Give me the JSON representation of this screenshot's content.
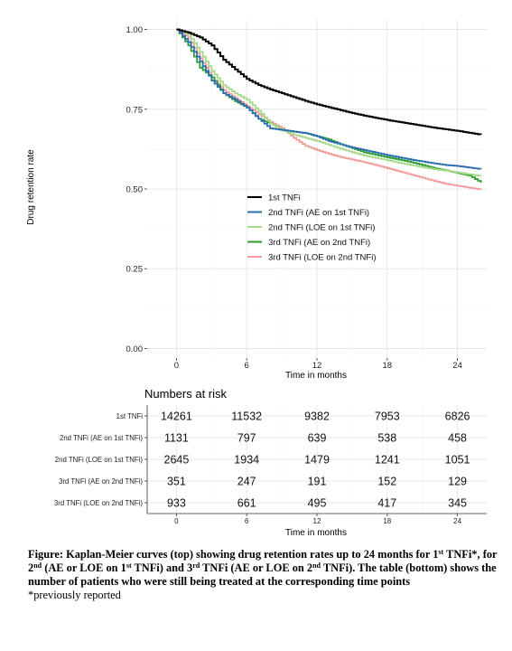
{
  "chart_data": [
    {
      "type": "line",
      "subtype": "step",
      "title": "",
      "ylabel": "Drug retention rate",
      "xlabel": "Time in months",
      "xlim": [
        -2.5,
        26.5
      ],
      "ylim": [
        -0.03,
        1.03
      ],
      "xticks": [
        0,
        6,
        12,
        18,
        24
      ],
      "yticks": [
        0.0,
        0.25,
        0.5,
        0.75,
        1.0
      ],
      "ytick_labels": [
        "0.00",
        "0.25",
        "0.50",
        "0.75",
        "1.00"
      ],
      "grid": true,
      "legend_position": "center",
      "series": [
        {
          "name": "1st TNFi",
          "color": "#000000",
          "x": [
            0,
            1,
            2,
            3,
            4,
            5,
            6,
            7,
            8,
            9,
            10,
            11,
            12,
            13,
            14,
            15,
            16,
            17,
            18,
            19,
            20,
            21,
            22,
            23,
            24,
            25,
            26
          ],
          "y": [
            1.0,
            0.99,
            0.975,
            0.95,
            0.905,
            0.875,
            0.845,
            0.826,
            0.812,
            0.8,
            0.788,
            0.776,
            0.765,
            0.756,
            0.747,
            0.738,
            0.73,
            0.723,
            0.716,
            0.71,
            0.704,
            0.698,
            0.692,
            0.687,
            0.682,
            0.676,
            0.67
          ]
        },
        {
          "name": "2nd TNFi (AE on 1st TNFi)",
          "color": "#2a6fb0",
          "x": [
            0,
            1,
            2,
            3,
            4,
            5,
            6,
            7,
            8,
            9,
            10,
            11,
            12,
            13,
            14,
            15,
            16,
            17,
            18,
            19,
            20,
            21,
            22,
            23,
            24,
            25,
            26
          ],
          "y": [
            1.0,
            0.96,
            0.9,
            0.84,
            0.8,
            0.78,
            0.755,
            0.72,
            0.69,
            0.685,
            0.68,
            0.675,
            0.665,
            0.65,
            0.64,
            0.63,
            0.622,
            0.614,
            0.606,
            0.599,
            0.592,
            0.586,
            0.58,
            0.575,
            0.572,
            0.567,
            0.562
          ]
        },
        {
          "name": "2nd TNFi (LOE on 1st TNFi)",
          "color": "#a6d98a",
          "x": [
            0,
            1,
            2,
            3,
            4,
            5,
            6,
            7,
            8,
            9,
            10,
            11,
            12,
            13,
            14,
            15,
            16,
            17,
            18,
            19,
            20,
            21,
            22,
            23,
            24,
            25,
            26
          ],
          "y": [
            1.0,
            0.985,
            0.93,
            0.87,
            0.825,
            0.8,
            0.78,
            0.745,
            0.705,
            0.685,
            0.67,
            0.66,
            0.65,
            0.638,
            0.626,
            0.615,
            0.605,
            0.597,
            0.59,
            0.582,
            0.575,
            0.568,
            0.562,
            0.557,
            0.552,
            0.546,
            0.54
          ]
        },
        {
          "name": "3rd TNFi (AE on 2nd TNFi)",
          "color": "#2e9e2e",
          "x": [
            0,
            1,
            2,
            3,
            4,
            5,
            6,
            7,
            8,
            9,
            10,
            11,
            12,
            13,
            14,
            15,
            16,
            17,
            18,
            19,
            20,
            21,
            22,
            23,
            24,
            25,
            26
          ],
          "y": [
            1.0,
            0.95,
            0.88,
            0.85,
            0.8,
            0.775,
            0.755,
            0.72,
            0.705,
            0.685,
            0.68,
            0.675,
            0.665,
            0.655,
            0.64,
            0.628,
            0.615,
            0.607,
            0.599,
            0.592,
            0.584,
            0.575,
            0.565,
            0.558,
            0.55,
            0.542,
            0.52
          ]
        },
        {
          "name": "3rd TNFi (LOE on 2nd TNFi)",
          "color": "#f29c9c",
          "x": [
            0,
            1,
            2,
            3,
            4,
            5,
            6,
            7,
            8,
            9,
            10,
            11,
            12,
            13,
            14,
            15,
            16,
            17,
            18,
            19,
            20,
            21,
            22,
            23,
            24,
            25,
            26
          ],
          "y": [
            1.0,
            0.975,
            0.91,
            0.85,
            0.81,
            0.785,
            0.76,
            0.735,
            0.71,
            0.69,
            0.66,
            0.635,
            0.622,
            0.61,
            0.6,
            0.592,
            0.584,
            0.575,
            0.565,
            0.555,
            0.545,
            0.535,
            0.525,
            0.516,
            0.51,
            0.504,
            0.498
          ]
        }
      ]
    },
    {
      "type": "table",
      "title": "Numbers at risk",
      "xlabel": "Time in months",
      "xticks": [
        0,
        6,
        12,
        18,
        24
      ],
      "rows": [
        {
          "label": "1st TNFi",
          "values": [
            14261,
            11532,
            9382,
            7953,
            6826
          ]
        },
        {
          "label": "2nd TNFi (AE on 1st TNFi)",
          "values": [
            1131,
            797,
            639,
            538,
            458
          ]
        },
        {
          "label": "2nd TNFi (LOE on 1st TNFi)",
          "values": [
            2645,
            1934,
            1479,
            1241,
            1051
          ]
        },
        {
          "label": "3rd TNFi (AE on 2nd TNFi)",
          "values": [
            351,
            247,
            191,
            152,
            129
          ]
        },
        {
          "label": "3rd TNFi (LOE on 2nd TNFi)",
          "values": [
            933,
            661,
            495,
            417,
            345
          ]
        }
      ]
    }
  ],
  "caption": {
    "figure_prefix": "Figure: Kaplan-Meier curves (top) showing drug retention rates up to 24 months for 1",
    "sup_1": "st",
    "part_2": " TNFi*,  for 2",
    "sup_2": "nd",
    "part_3": " (AE  or LOE on 1",
    "sup_3": "st",
    "part_4": " TNFi)  and 3",
    "sup_4": "rd",
    "part_5": " TNFi  (AE  or LOE on 2",
    "sup_5": "nd",
    "part_6": " TNFi).  The table (bottom) shows the number of patients who were still being treated at the corresponding time points",
    "note": "*previously reported"
  }
}
